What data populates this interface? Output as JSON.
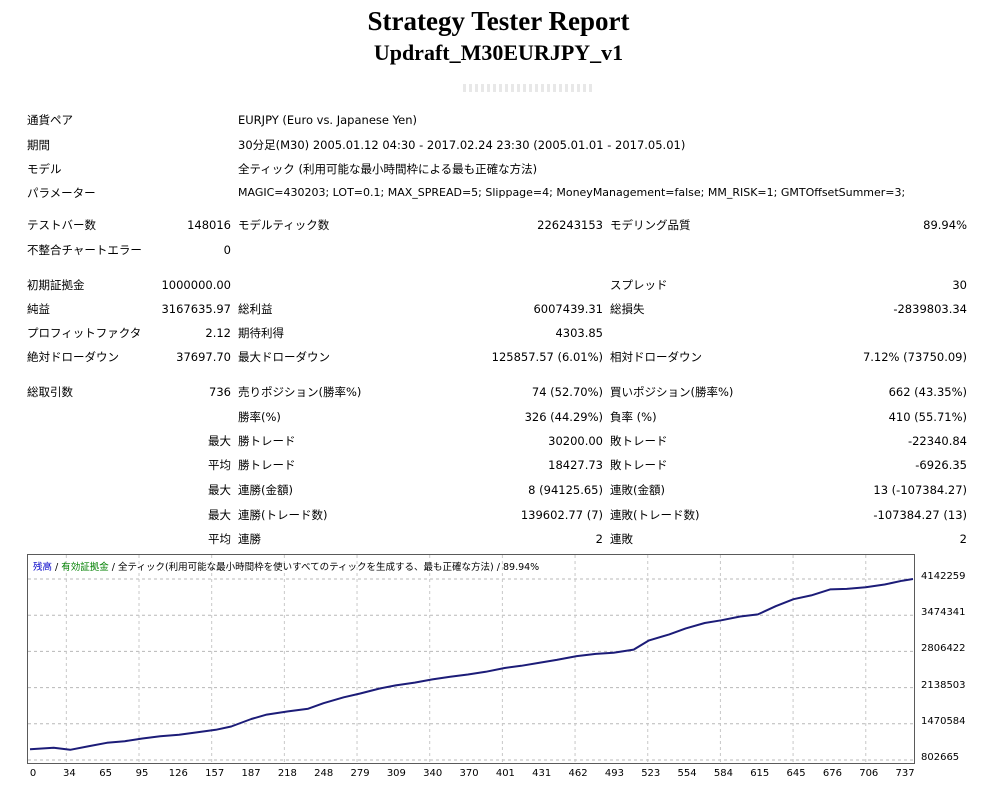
{
  "title": "Strategy Tester Report",
  "subtitle": "Updraft_M30EURJPY_v1",
  "info": {
    "symbol_label": "通貨ペア",
    "symbol_value": "EURJPY (Euro vs. Japanese Yen)",
    "period_label": "期間",
    "period_value": "30分足(M30) 2005.01.12 04:30 - 2017.02.24 23:30 (2005.01.01 - 2017.05.01)",
    "model_label": "モデル",
    "model_value": "全ティック (利用可能な最小時間枠による最も正確な方法)",
    "params_label": "パラメーター",
    "params_value": "MAGIC=430203; LOT=0.1; MAX_SPREAD=5; Slippage=4; MoneyManagement=false; MM_RISK=1; GMTOffsetSummer=3;"
  },
  "stats": {
    "bars_label": "テストバー数",
    "bars_value": "148016",
    "ticks_label": "モデルティック数",
    "ticks_value": "226243153",
    "quality_label": "モデリング品質",
    "quality_value": "89.94%",
    "mismatch_label": "不整合チャートエラー",
    "mismatch_value": "0",
    "deposit_label": "初期証拠金",
    "deposit_value": "1000000.00",
    "spread_label": "スプレッド",
    "spread_value": "30",
    "net_label": "純益",
    "net_value": "3167635.97",
    "gross_profit_label": "総利益",
    "gross_profit_value": "6007439.31",
    "gross_loss_label": "総損失",
    "gross_loss_value": "-2839803.34",
    "pf_label": "プロフィットファクタ",
    "pf_value": "2.12",
    "expected_label": "期待利得",
    "expected_value": "4303.85",
    "abs_dd_label": "絶対ドローダウン",
    "abs_dd_value": "37697.70",
    "max_dd_label": "最大ドローダウン",
    "max_dd_value": "125857.57 (6.01%)",
    "rel_dd_label": "相対ドローダウン",
    "rel_dd_value": "7.12% (73750.09)",
    "trades_label": "総取引数",
    "trades_value": "736",
    "short_label": "売りポジション(勝率%)",
    "short_value": "74 (52.70%)",
    "long_label": "買いポジション(勝率%)",
    "long_value": "662 (43.35%)",
    "win_rate_label": "勝率(%)",
    "win_rate_value": "326 (44.29%)",
    "loss_rate_label": "負率 (%)",
    "loss_rate_value": "410 (55.71%)",
    "q_max": "最大",
    "q_avg": "平均",
    "largest_win_label": "勝トレード",
    "largest_win_value": "30200.00",
    "largest_loss_label": "敗トレード",
    "largest_loss_value": "-22340.84",
    "avg_win_label": "勝トレード",
    "avg_win_value": "18427.73",
    "avg_loss_label": "敗トレード",
    "avg_loss_value": "-6926.35",
    "max_consec_win_money_label": "連勝(金額)",
    "max_consec_win_money_value": "8 (94125.65)",
    "max_consec_loss_money_label": "連敗(金額)",
    "max_consec_loss_money_value": "13 (-107384.27)",
    "max_consec_win_count_label": "連勝(トレード数)",
    "max_consec_win_count_value": "139602.77 (7)",
    "max_consec_loss_count_label": "連敗(トレード数)",
    "max_consec_loss_count_value": "-107384.27 (13)",
    "avg_consec_win_label": "連勝",
    "avg_consec_win_value": "2",
    "avg_consec_loss_label": "連敗",
    "avg_consec_loss_value": "2"
  },
  "chart_legend": {
    "balance": "残高",
    "sep1": " / ",
    "equity": "有効証拠金",
    "rest": " / 全ティック(利用可能な最小時間枠を使いすべてのティックを生成する、最も正確な方法) / 89.94%",
    "balance_color": "#0000c8",
    "equity_color": "#008000"
  },
  "chart_data": {
    "type": "line",
    "x": [
      0,
      20,
      34,
      50,
      65,
      80,
      95,
      110,
      126,
      140,
      157,
      170,
      187,
      200,
      218,
      235,
      248,
      265,
      279,
      295,
      309,
      325,
      340,
      355,
      370,
      385,
      401,
      415,
      431,
      445,
      462,
      478,
      493,
      510,
      523,
      540,
      554,
      570,
      584,
      600,
      615,
      630,
      645,
      660,
      676,
      690,
      706,
      722,
      737,
      746
    ],
    "series": [
      {
        "values": [
          1000000,
          1030000,
          990000,
          1060000,
          1120000,
          1150000,
          1200000,
          1240000,
          1270000,
          1310000,
          1360000,
          1420000,
          1560000,
          1640000,
          1700000,
          1750000,
          1850000,
          1960000,
          2030000,
          2120000,
          2180000,
          2230000,
          2290000,
          2340000,
          2380000,
          2430000,
          2500000,
          2540000,
          2600000,
          2650000,
          2720000,
          2760000,
          2780000,
          2840000,
          3010000,
          3120000,
          3230000,
          3330000,
          3380000,
          3450000,
          3490000,
          3640000,
          3770000,
          3840000,
          3950000,
          3960000,
          3990000,
          4040000,
          4110000,
          4142259
        ]
      }
    ],
    "y_ticks": [
      "4142259",
      "3474341",
      "2806422",
      "2138503",
      "1470584",
      "802665"
    ],
    "x_ticks": [
      "0",
      "34",
      "65",
      "95",
      "126",
      "157",
      "187",
      "218",
      "248",
      "279",
      "309",
      "340",
      "370",
      "401",
      "431",
      "462",
      "493",
      "523",
      "554",
      "584",
      "615",
      "645",
      "676",
      "706",
      "737"
    ],
    "xlim": [
      0,
      746
    ],
    "ylim": [
      802665,
      4142259
    ],
    "grid": true
  }
}
